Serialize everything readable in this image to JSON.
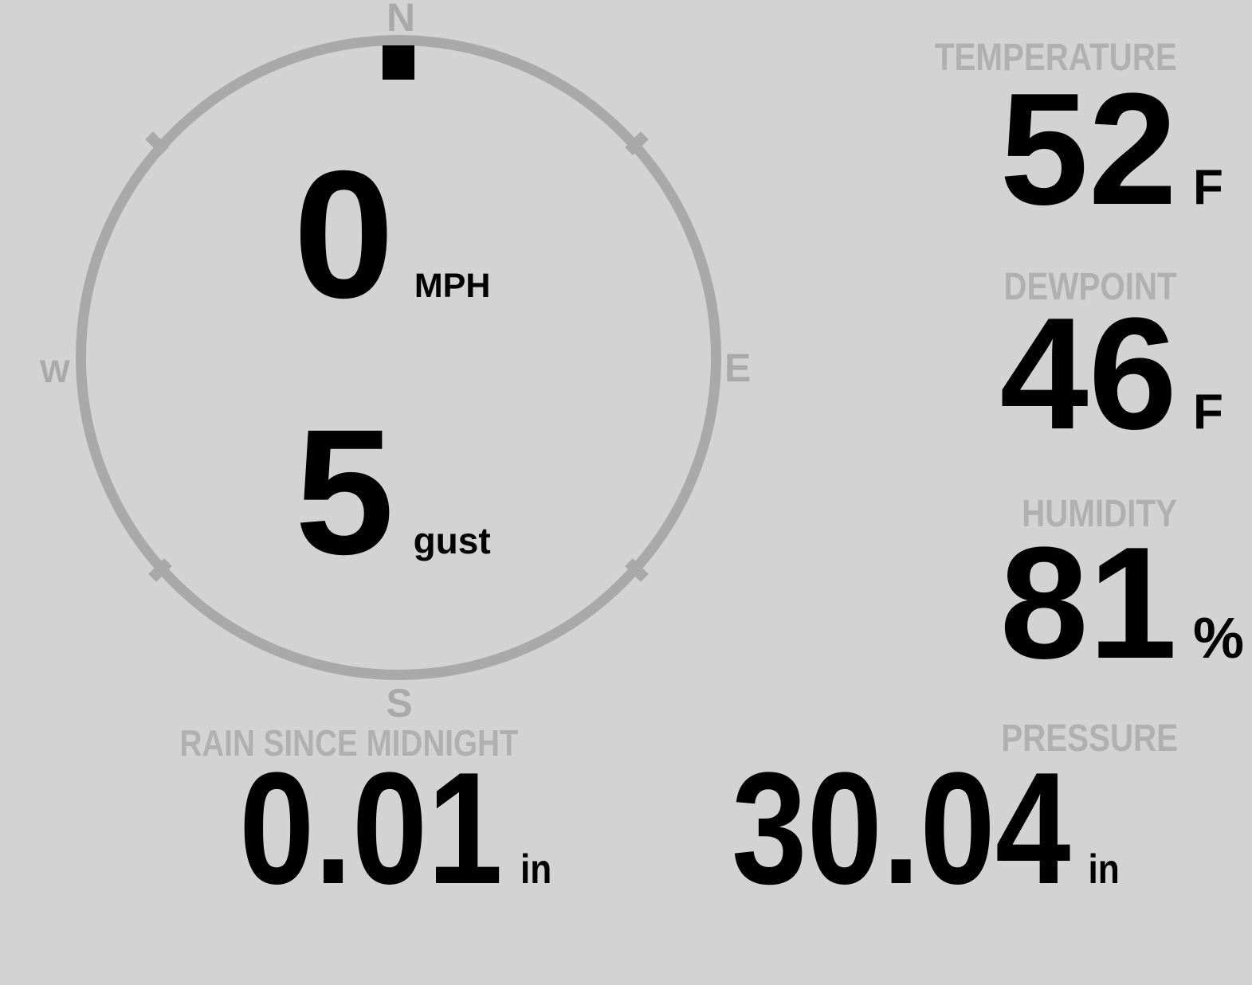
{
  "colors": {
    "background": "#d3d3d3",
    "dial": "#a9a9a9",
    "label": "#b0b0b0",
    "value": "#000000"
  },
  "compass": {
    "north_label": "N",
    "south_label": "S",
    "east_label": "E",
    "west_label": "W",
    "marker_position": "N",
    "wind_speed_value": "0",
    "wind_speed_unit": "MPH",
    "wind_gust_value": "5",
    "wind_gust_unit": "gust"
  },
  "metrics": {
    "temperature": {
      "label": "TEMPERATURE",
      "value": "52",
      "unit": "F"
    },
    "dewpoint": {
      "label": "DEWPOINT",
      "value": "46",
      "unit": "F"
    },
    "humidity": {
      "label": "HUMIDITY",
      "value": "81",
      "unit": "%"
    },
    "rain_since_midnight": {
      "label": "RAIN SINCE MIDNIGHT",
      "value": "0.01",
      "unit": "in"
    },
    "pressure": {
      "label": "PRESSURE",
      "value": "30.04",
      "unit": "in"
    }
  }
}
